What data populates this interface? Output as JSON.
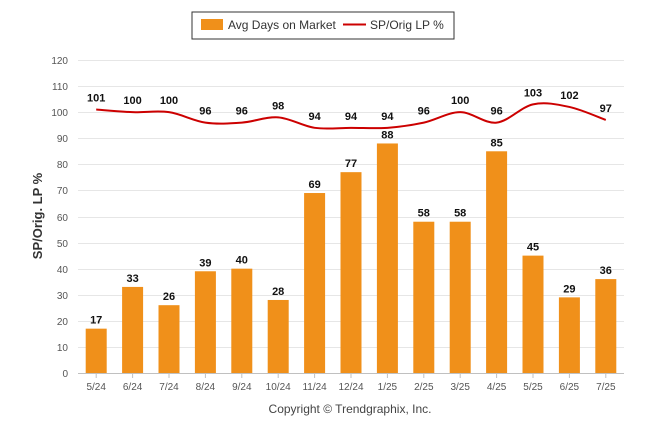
{
  "chart_data": {
    "type": "bar",
    "categories": [
      "5/24",
      "6/24",
      "7/24",
      "8/24",
      "9/24",
      "10/24",
      "11/24",
      "12/24",
      "1/25",
      "2/25",
      "3/25",
      "4/25",
      "5/25",
      "6/25",
      "7/25"
    ],
    "series": [
      {
        "name": "Avg Days on Market",
        "type": "bar",
        "color": "#f0901a",
        "values": [
          17,
          33,
          26,
          39,
          40,
          28,
          69,
          77,
          88,
          58,
          58,
          85,
          45,
          29,
          36
        ]
      },
      {
        "name": "SP/Orig LP %",
        "type": "line",
        "color": "#cc0000",
        "values": [
          101,
          100,
          100,
          96,
          96,
          98,
          94,
          94,
          94,
          96,
          100,
          96,
          103,
          102,
          97
        ]
      }
    ],
    "ylabel": "SP/Orig. LP %",
    "ylim": [
      0,
      120
    ],
    "yticks": [
      0,
      10,
      20,
      30,
      40,
      50,
      60,
      70,
      80,
      90,
      100,
      110,
      120
    ],
    "grid": true,
    "legend_position": "top-center"
  },
  "credit": "Copyright © Trendgraphix, Inc."
}
